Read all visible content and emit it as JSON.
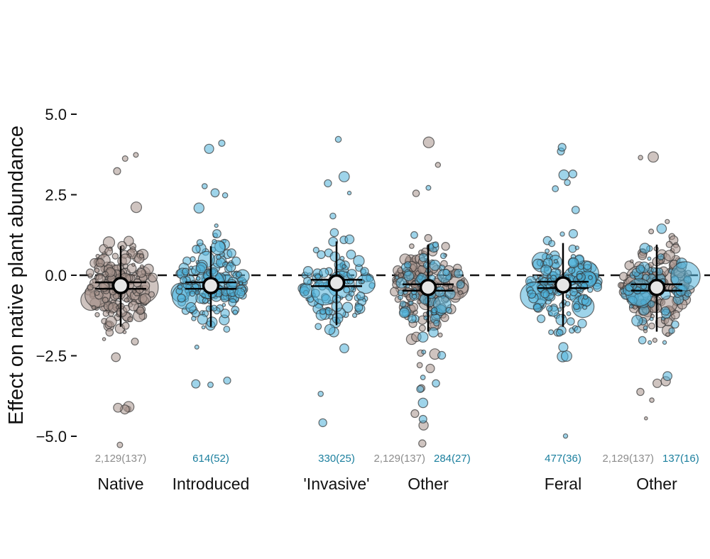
{
  "chart_data": {
    "type": "scatter",
    "ylabel": "Effect on native plant abundance",
    "ylim": [
      -5.4,
      6.6
    ],
    "yticks": [
      {
        "value": 5.0,
        "label": "5.0"
      },
      {
        "value": 2.5,
        "label": "2.5"
      },
      {
        "value": 0.0,
        "label": "0.0"
      },
      {
        "value": -2.5,
        "label": "−2.5"
      },
      {
        "value": -5.0,
        "label": "−5.0"
      }
    ],
    "reference_line": {
      "value": 0.0,
      "style": "dashed"
    },
    "colors": {
      "native": "#a7948d",
      "introduced": "#4fb1d8",
      "ci_line": "#000000",
      "mean_fill": "#e6e6e6",
      "native_count_text": "#8c8c8c",
      "introduced_count_text": "#1b7f9e"
    },
    "groups": [
      {
        "label": "Native",
        "status": "native",
        "mean": -0.32,
        "ci": [
          -1.6,
          0.9
        ],
        "hbar": [
          -0.42,
          -0.22
        ],
        "count": "2,129(137)",
        "count_color_key": "native"
      },
      {
        "label": "Introduced",
        "status": "introduced",
        "mean": -0.32,
        "ci": [
          -1.6,
          0.9
        ],
        "hbar": [
          -0.42,
          -0.22
        ],
        "count": "614(52)",
        "count_color_key": "introduced"
      },
      {
        "label": "'Invasive'",
        "status": "introduced",
        "mean": -0.24,
        "ci": [
          -1.55,
          1.05
        ],
        "hbar": [
          -0.34,
          -0.14
        ],
        "count": "330(25)",
        "count_color_key": "introduced"
      },
      {
        "label": "Other",
        "status": "mixed",
        "mean": -0.38,
        "ci": [
          -1.75,
          0.95
        ],
        "hbar": [
          -0.48,
          -0.28
        ],
        "count": "2,129(137)",
        "count_color_key": "native",
        "count2": "284(27)",
        "count2_color_key": "introduced"
      },
      {
        "label": "Feral",
        "status": "introduced",
        "mean": -0.3,
        "ci": [
          -1.6,
          1.0
        ],
        "hbar": [
          -0.4,
          -0.2
        ],
        "count": "477(36)",
        "count_color_key": "introduced"
      },
      {
        "label": "Other",
        "status": "mixed",
        "mean": -0.38,
        "ci": [
          -1.75,
          0.95
        ],
        "hbar": [
          -0.48,
          -0.28
        ],
        "count": "2,129(137)",
        "count_color_key": "native",
        "count2": "137(16)",
        "count2_color_key": "introduced"
      }
    ]
  }
}
